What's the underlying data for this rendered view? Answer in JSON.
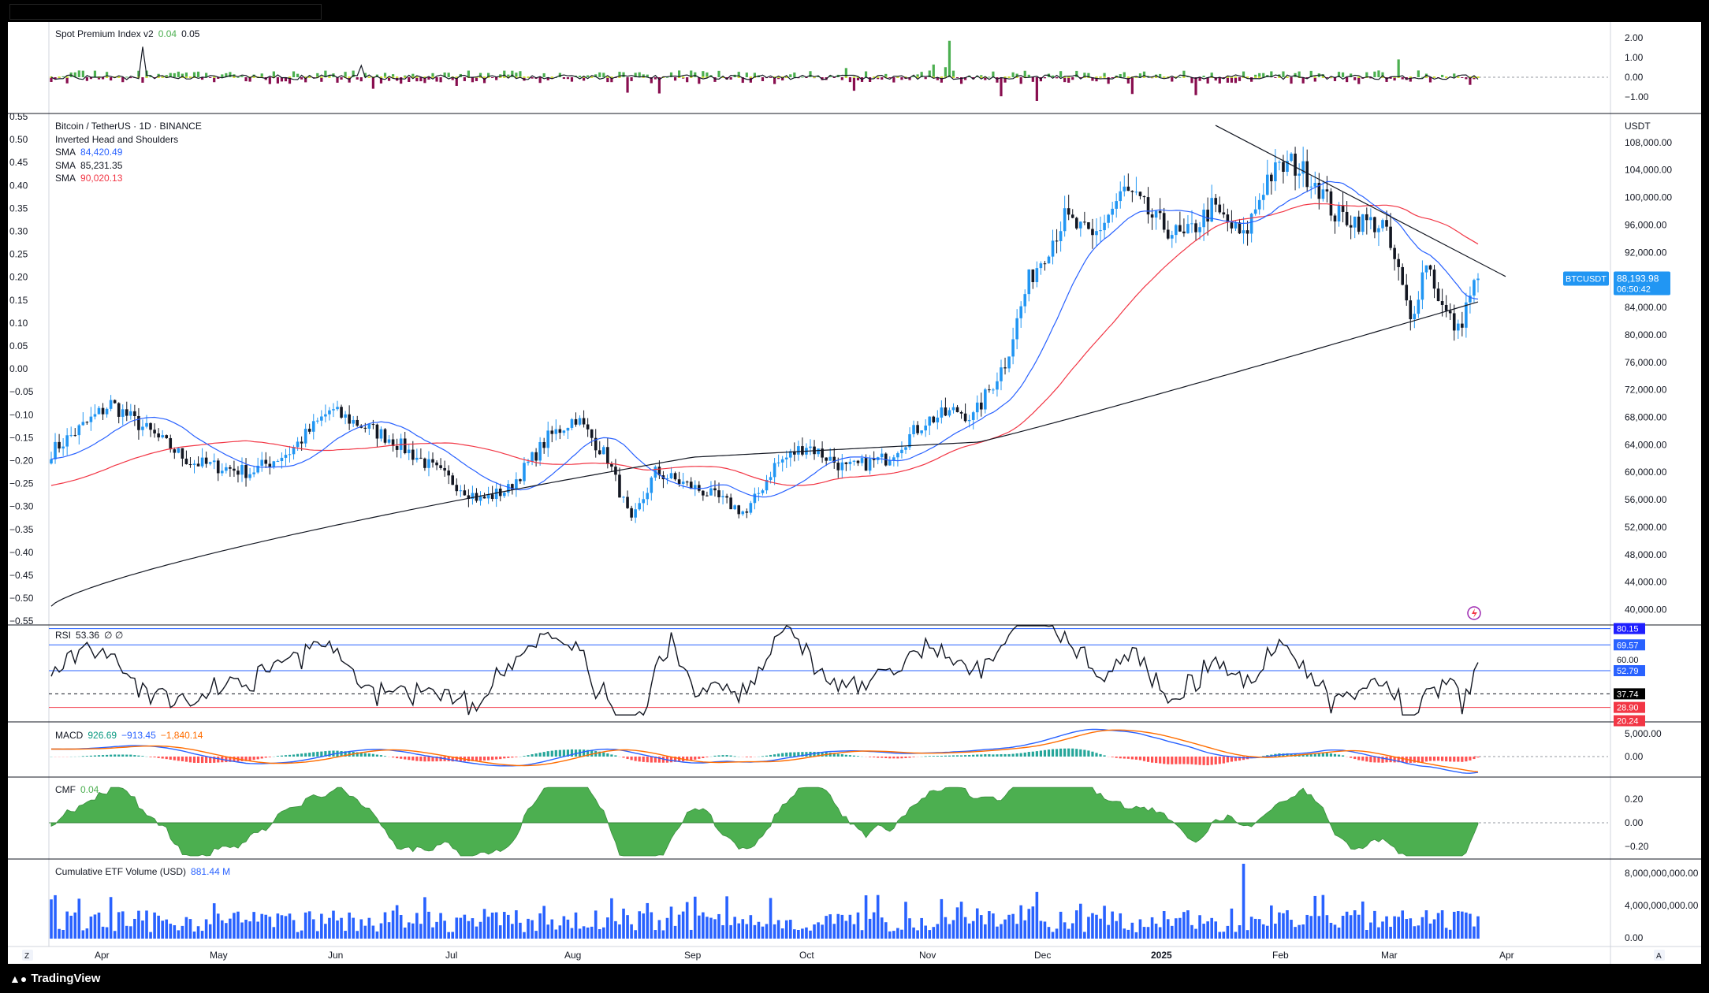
{
  "app": {
    "brand": "TradingView"
  },
  "panes": {
    "spot_premium": {
      "name": "Spot Premium Index v2",
      "v1": "0.04",
      "v2": "0.05",
      "axis": [
        "2.00",
        "1.00",
        "0.00",
        "−1.00"
      ]
    },
    "main": {
      "symbol": "Bitcoin / TetherUS · 1D · BINANCE",
      "pattern": "Inverted Head and Shoulders",
      "sma1_label": "SMA",
      "sma1": "84,420.49",
      "sma2_label": "SMA",
      "sma2": "85,231.35",
      "sma3_label": "SMA",
      "sma3": "90,020.13",
      "currency": "USDT",
      "price_ticks": [
        "108,000.00",
        "104,000.00",
        "100,000.00",
        "96,000.00",
        "92,000.00",
        "88,000.00",
        "84,000.00",
        "80,000.00",
        "76,000.00",
        "72,000.00",
        "68,000.00",
        "64,000.00",
        "60,000.00",
        "56,000.00",
        "52,000.00",
        "48,000.00",
        "44,000.00",
        "40,000.00"
      ],
      "left_ticks": [
        "0.55",
        "0.50",
        "0.45",
        "0.40",
        "0.35",
        "0.30",
        "0.25",
        "0.20",
        "0.15",
        "0.10",
        "0.05",
        "0.00",
        "−0.05",
        "−0.10",
        "−0.15",
        "−0.20",
        "−0.25",
        "−0.30",
        "−0.35",
        "−0.40",
        "−0.45",
        "−0.50",
        "−0.55"
      ],
      "ticker_badge": "BTCUSDT",
      "last_price": "88,193.98",
      "countdown": "06:50:42"
    },
    "rsi": {
      "name": "RSI",
      "value": "53.36",
      "glyphs": "∅ ∅",
      "badges": [
        "80.15",
        "69.57",
        "60.00",
        "52.79",
        "37.74",
        "28.90",
        "20.24"
      ]
    },
    "macd": {
      "name": "MACD",
      "v1": "926.69",
      "v2": "−913.45",
      "v3": "−1,840.14",
      "axis": [
        "5,000.00",
        "0.00"
      ]
    },
    "cmf": {
      "name": "CMF",
      "value": "0.04",
      "axis": [
        "0.20",
        "0.00",
        "−0.20"
      ]
    },
    "etf": {
      "name": "Cumulative ETF Volume (USD)",
      "value": "881.44 M",
      "axis": [
        "8,000,000,000.00",
        "4,000,000,000.00",
        "0.00"
      ]
    }
  },
  "time_axis": {
    "labels": [
      "Apr",
      "May",
      "Jun",
      "Jul",
      "Aug",
      "Sep",
      "Oct",
      "Nov",
      "Dec",
      "2025",
      "Feb",
      "Mar",
      "Apr"
    ],
    "left_btn": "Z",
    "right_btn": "A"
  },
  "colors": {
    "up": "#2196f3",
    "down": "#131722",
    "sma_fast": "#2962ff",
    "sma_slow": "#f23645",
    "sma_long": "#131722",
    "green": "#4caf50",
    "maroon": "#880e4f",
    "orange": "#ff6d00"
  },
  "chart_data": {
    "type": "line",
    "title": "Bitcoin / TetherUS · 1D · BINANCE",
    "x": [
      "Apr",
      "May",
      "Jun",
      "Jul",
      "Aug",
      "Sep",
      "Oct",
      "Nov",
      "Dec",
      "2025",
      "Feb",
      "Mar"
    ],
    "series": [
      {
        "name": "SMA",
        "values": [
          65000,
          63500,
          68000,
          60500,
          59000,
          57000,
          62000,
          69000,
          95000,
          98000,
          100500,
          86000
        ]
      },
      {
        "name": "SMA",
        "values": [
          62000,
          66000,
          67000,
          63000,
          60000,
          59000,
          61000,
          63500,
          86000,
          97000,
          101000,
          93000
        ]
      },
      {
        "name": "SMA",
        "values": [
          40500,
          47500,
          54500,
          60000,
          62500,
          64000,
          64300,
          64500,
          69500,
          74000,
          79000,
          84000
        ]
      }
    ],
    "ylim": [
      38000,
      112000
    ],
    "last_price": 88193.98
  }
}
